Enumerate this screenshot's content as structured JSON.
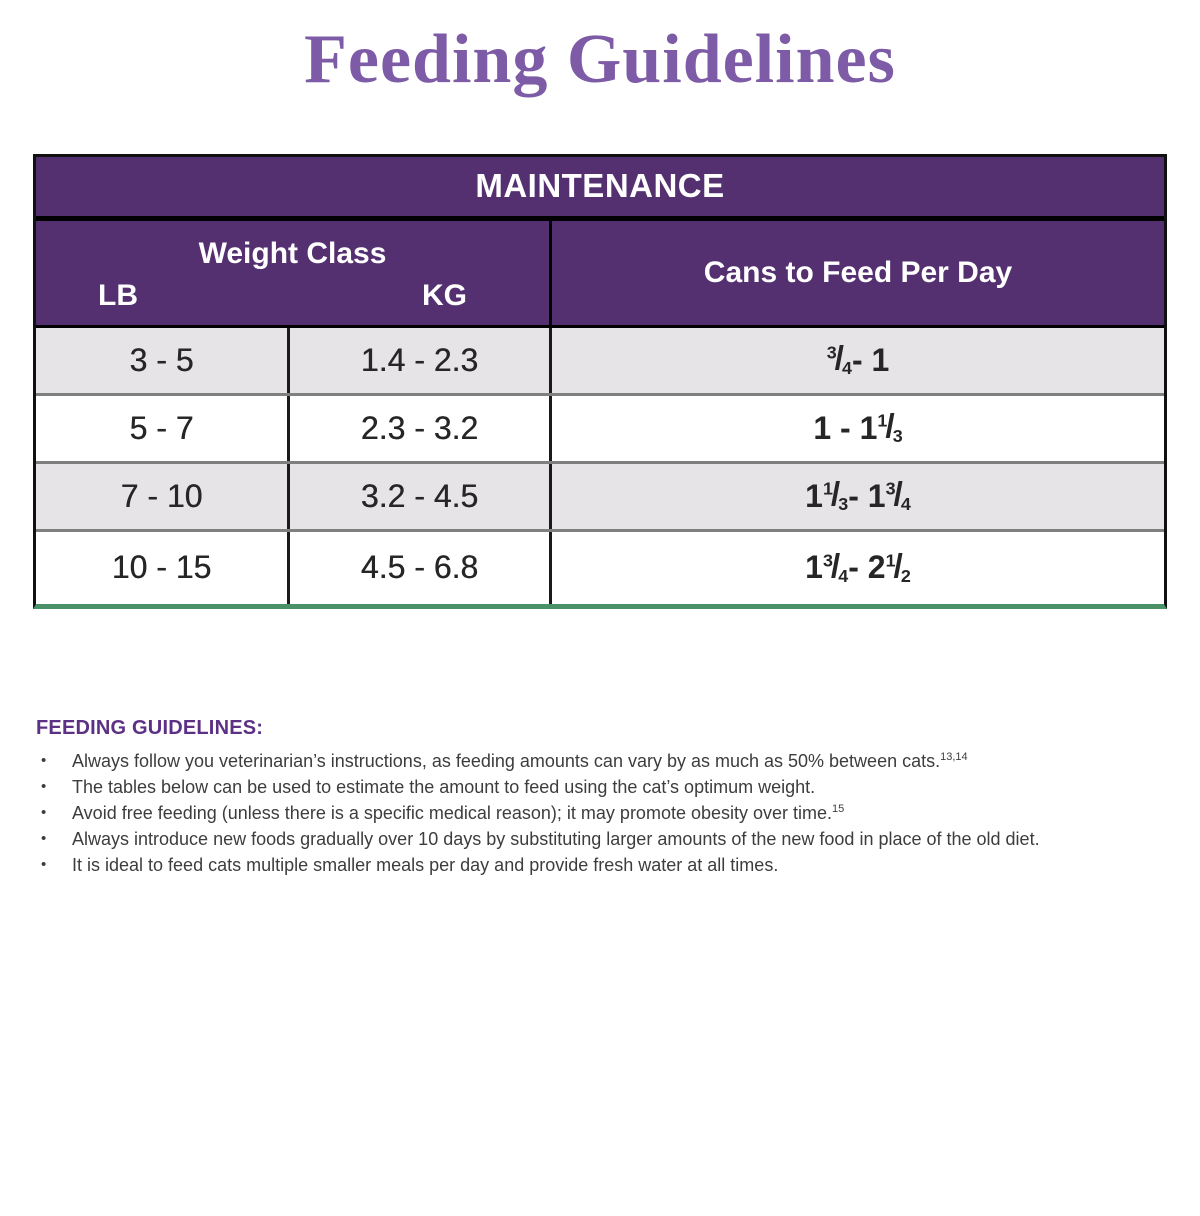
{
  "page": {
    "title": "Feeding Guidelines"
  },
  "colors": {
    "title_purple": "#7d5ba6",
    "header_purple": "#553070",
    "section_purple": "#5c3185",
    "row_gray": "#e6e4e7",
    "green_line": "#4b9168",
    "body_text": "#3d3d3d"
  },
  "table": {
    "title": "MAINTENANCE",
    "weight_class_label": "Weight Class",
    "lb_label": "LB",
    "kg_label": "KG",
    "cans_label": "Cans to Feed Per Day",
    "rows": [
      {
        "lb": "3 - 5",
        "kg": "1.4 - 2.3",
        "cans": [
          {
            "num": "3",
            "den": "4"
          },
          {
            "text": " - 1"
          }
        ]
      },
      {
        "lb": "5 - 7",
        "kg": "2.3 - 3.2",
        "cans": [
          {
            "text": "1 - 1 "
          },
          {
            "num": "1",
            "den": "3"
          }
        ]
      },
      {
        "lb": "7 - 10",
        "kg": "3.2 - 4.5",
        "cans": [
          {
            "text": "1 "
          },
          {
            "num": "1",
            "den": "3"
          },
          {
            "text": " - 1 "
          },
          {
            "num": "3",
            "den": "4"
          }
        ]
      },
      {
        "lb": "10 - 15",
        "kg": "4.5 - 6.8",
        "cans": [
          {
            "text": "1 "
          },
          {
            "num": "3",
            "den": "4"
          },
          {
            "text": " - 2 "
          },
          {
            "num": "1",
            "den": "2"
          }
        ]
      }
    ]
  },
  "guidelines": {
    "heading": "FEEDING GUIDELINES:",
    "bullet_glyph": "•",
    "bullets": [
      {
        "text": "Always follow you veterinarian’s instructions, as feeding amounts can vary by as much as 50% between cats.",
        "sup": "13,14"
      },
      {
        "text": "The tables below can be used to estimate the amount to feed using the cat’s optimum weight.",
        "sup": ""
      },
      {
        "text": "Avoid free feeding (unless there is a specific medical reason); it may promote obesity over time.",
        "sup": "15"
      },
      {
        "text": "Always introduce new foods gradually over 10 days by substituting larger amounts of the new food in place of the old diet.",
        "sup": ""
      },
      {
        "text": "It is ideal to feed cats multiple smaller meals per day and provide fresh water at all times.",
        "sup": ""
      }
    ]
  }
}
